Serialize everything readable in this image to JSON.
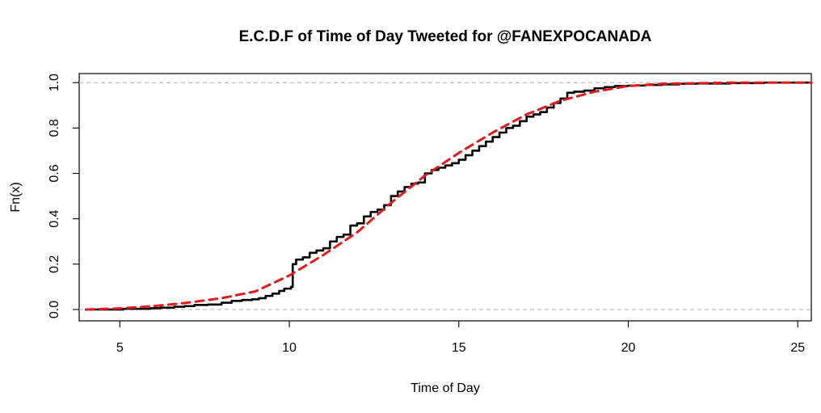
{
  "chart_data": {
    "type": "line",
    "title": "E.C.D.F of Time of Day Tweeted for @FANEXPOCANADA",
    "xlabel": "Time of Day",
    "ylabel": "Fn(x)",
    "xlim": [
      3.8,
      25.4
    ],
    "ylim": [
      -0.05,
      1.04
    ],
    "x_ticks": [
      5,
      10,
      15,
      20,
      25
    ],
    "y_ticks": [
      0.0,
      0.2,
      0.4,
      0.6,
      0.8,
      1.0
    ],
    "x_tick_labels": [
      "5",
      "10",
      "15",
      "20",
      "25"
    ],
    "y_tick_labels": [
      "0.0",
      "0.2",
      "0.4",
      "0.6",
      "0.8",
      "1.0"
    ],
    "reference_lines": [
      0,
      1
    ],
    "grid": false,
    "legend": "none",
    "series": [
      {
        "style": "step",
        "color": "#000000",
        "points": [
          [
            4.0,
            0.0
          ],
          [
            4.6,
            0.0
          ],
          [
            5.1,
            0.003
          ],
          [
            5.4,
            0.003
          ],
          [
            5.9,
            0.006
          ],
          [
            6.2,
            0.008
          ],
          [
            6.6,
            0.012
          ],
          [
            6.9,
            0.015
          ],
          [
            7.2,
            0.02
          ],
          [
            7.6,
            0.022
          ],
          [
            8.0,
            0.03
          ],
          [
            8.3,
            0.038
          ],
          [
            8.6,
            0.042
          ],
          [
            8.9,
            0.045
          ],
          [
            9.1,
            0.05
          ],
          [
            9.3,
            0.06
          ],
          [
            9.5,
            0.07
          ],
          [
            9.7,
            0.082
          ],
          [
            9.85,
            0.092
          ],
          [
            10.05,
            0.1
          ],
          [
            10.1,
            0.2
          ],
          [
            10.2,
            0.22
          ],
          [
            10.4,
            0.23
          ],
          [
            10.6,
            0.25
          ],
          [
            10.8,
            0.26
          ],
          [
            11.0,
            0.27
          ],
          [
            11.2,
            0.3
          ],
          [
            11.4,
            0.32
          ],
          [
            11.6,
            0.33
          ],
          [
            11.8,
            0.37
          ],
          [
            12.0,
            0.38
          ],
          [
            12.2,
            0.41
          ],
          [
            12.4,
            0.43
          ],
          [
            12.6,
            0.44
          ],
          [
            12.8,
            0.46
          ],
          [
            13.0,
            0.5
          ],
          [
            13.2,
            0.52
          ],
          [
            13.4,
            0.54
          ],
          [
            13.6,
            0.555
          ],
          [
            13.8,
            0.56
          ],
          [
            14.0,
            0.6
          ],
          [
            14.2,
            0.615
          ],
          [
            14.4,
            0.625
          ],
          [
            14.6,
            0.635
          ],
          [
            14.8,
            0.645
          ],
          [
            15.0,
            0.66
          ],
          [
            15.2,
            0.68
          ],
          [
            15.4,
            0.7
          ],
          [
            15.6,
            0.72
          ],
          [
            15.8,
            0.74
          ],
          [
            16.0,
            0.76
          ],
          [
            16.2,
            0.78
          ],
          [
            16.4,
            0.8
          ],
          [
            16.6,
            0.81
          ],
          [
            16.8,
            0.83
          ],
          [
            17.0,
            0.85
          ],
          [
            17.2,
            0.86
          ],
          [
            17.4,
            0.87
          ],
          [
            17.6,
            0.89
          ],
          [
            17.8,
            0.91
          ],
          [
            18.0,
            0.93
          ],
          [
            18.2,
            0.955
          ],
          [
            18.4,
            0.96
          ],
          [
            18.7,
            0.965
          ],
          [
            19.0,
            0.975
          ],
          [
            19.3,
            0.98
          ],
          [
            19.6,
            0.985
          ],
          [
            20.0,
            0.987
          ],
          [
            20.5,
            0.99
          ],
          [
            21.0,
            0.992
          ],
          [
            21.5,
            0.995
          ],
          [
            22.0,
            0.996
          ],
          [
            23.0,
            0.998
          ],
          [
            24.0,
            1.0
          ],
          [
            25.4,
            1.0
          ]
        ]
      },
      {
        "style": "dashed",
        "color": "#e31a1c",
        "points": [
          [
            4.0,
            0.0
          ],
          [
            5.0,
            0.005
          ],
          [
            6.0,
            0.015
          ],
          [
            7.0,
            0.03
          ],
          [
            8.0,
            0.05
          ],
          [
            9.0,
            0.08
          ],
          [
            10.0,
            0.15
          ],
          [
            11.0,
            0.24
          ],
          [
            12.0,
            0.34
          ],
          [
            13.0,
            0.47
          ],
          [
            14.0,
            0.59
          ],
          [
            15.0,
            0.69
          ],
          [
            16.0,
            0.78
          ],
          [
            17.0,
            0.86
          ],
          [
            18.0,
            0.92
          ],
          [
            19.0,
            0.96
          ],
          [
            20.0,
            0.985
          ],
          [
            21.0,
            0.995
          ],
          [
            23.0,
            1.0
          ],
          [
            25.4,
            1.0
          ]
        ]
      }
    ]
  }
}
